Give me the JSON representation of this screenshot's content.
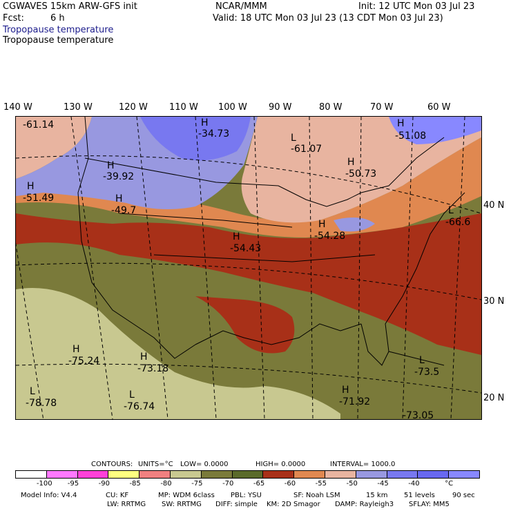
{
  "header": {
    "model": "CGWAVES 15km ARW-GFS init",
    "org": "NCAR/MMM",
    "init": "Init: 12 UTC Mon 03 Jul 23",
    "fcst_label": "Fcst:",
    "fcst_value": "6 h",
    "valid": "Valid: 18 UTC Mon 03 Jul 23 (13 CDT Mon 03 Jul 23)",
    "field_blue": "Tropopause temperature",
    "field_black": "Tropopause temperature"
  },
  "lon_labels": [
    "140 W",
    "130 W",
    "120 W",
    "110 W",
    "100 W",
    "90 W",
    "80 W",
    "70 W",
    "60 W"
  ],
  "lat_labels": [
    "40 N",
    "30 N",
    "20 N"
  ],
  "map_labels": [
    {
      "text": "-61.14"
    },
    {
      "text": "H"
    },
    {
      "text": "-34.73"
    },
    {
      "text": "L"
    },
    {
      "text": "-61.07"
    },
    {
      "text": "H"
    },
    {
      "text": "-51.08"
    },
    {
      "text": "H"
    },
    {
      "text": "-39.92"
    },
    {
      "text": "H"
    },
    {
      "text": "-50.73"
    },
    {
      "text": "H"
    },
    {
      "text": "-51.49"
    },
    {
      "text": "H"
    },
    {
      "text": "-49.7"
    },
    {
      "text": "L"
    },
    {
      "text": "-66.6"
    },
    {
      "text": "H"
    },
    {
      "text": "-54.28"
    },
    {
      "text": "H"
    },
    {
      "text": "-54.43"
    },
    {
      "text": "H"
    },
    {
      "text": "-75.24"
    },
    {
      "text": "H"
    },
    {
      "text": "-73.18"
    },
    {
      "text": "L"
    },
    {
      "text": "-73.5"
    },
    {
      "text": "L"
    },
    {
      "text": "-78.78"
    },
    {
      "text": "L"
    },
    {
      "text": "-76.74"
    },
    {
      "text": "H"
    },
    {
      "text": "-71.92"
    },
    {
      "text": "-73.05"
    }
  ],
  "contours_line": {
    "contours": "CONTOURS:",
    "units": "UNITS=°C",
    "low": "LOW=  0.0000",
    "high": "HIGH=  0.0000",
    "interval": "INTERVAL=    1000.0"
  },
  "colorbar": {
    "colors": [
      "#ffffff",
      "#ff78ff",
      "#ff40d8",
      "#ffff80",
      "#f08080",
      "#c8c890",
      "#7a7a3a",
      "#5a6a2a",
      "#a83018",
      "#e08850",
      "#e8b4a0",
      "#9898e0",
      "#7878f0",
      "#6868f0",
      "#8888ff"
    ],
    "ticks": [
      "-100",
      "-95",
      "-90",
      "-85",
      "-80",
      "-75",
      "-70",
      "-65",
      "-60",
      "-55",
      "-50",
      "-45",
      "-40",
      "°C"
    ]
  },
  "footer": {
    "line1": [
      "Model Info: V4.4",
      "CU: KF",
      "MP: WDM 6class",
      "PBL: YSU",
      "SF: Noah LSM",
      "15 km",
      "51 levels",
      "90 sec"
    ],
    "line2": [
      "LW: RRTMG",
      "SW: RRTMG",
      "DIFF: simple",
      "KM: 2D Smagor",
      "DAMP: Rayleigh3",
      "SFLAY: MM5"
    ]
  }
}
